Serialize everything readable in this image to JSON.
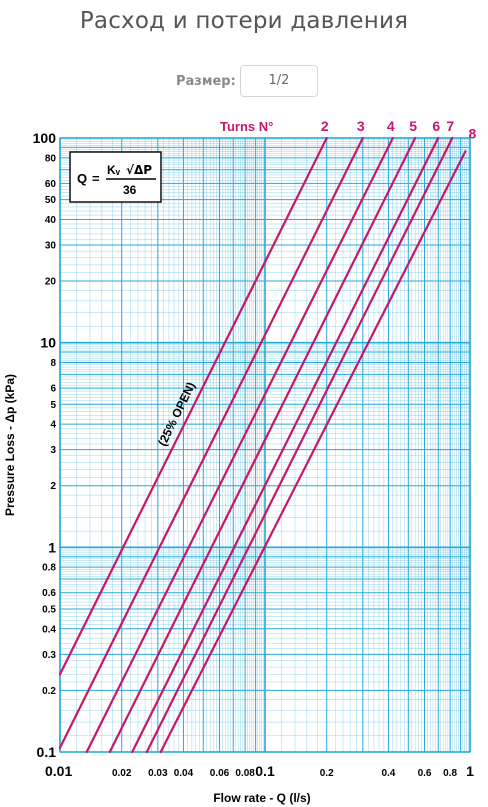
{
  "page": {
    "title": "Расход и потери давления",
    "size_label": "Размер:",
    "size_value": "1/2"
  },
  "colors": {
    "grid": "#27a9d8",
    "series": "#c5176d",
    "axis_text": "#000000"
  },
  "chart_data": {
    "type": "line",
    "xscale": "log",
    "yscale": "log",
    "xlim": [
      0.01,
      1
    ],
    "ylim": [
      0.1,
      100
    ],
    "xlabel": "Flow rate - Q (l/s)",
    "ylabel": "Pressure Loss  - Δp (kPa)",
    "x_ticks": [
      "0.01",
      "0.02",
      "0.03",
      "0.04",
      "0.06",
      "0.08",
      "0.1",
      "0.2",
      "0.4",
      "0.6",
      "0.8",
      "1"
    ],
    "x_tick_values": [
      0.01,
      0.02,
      0.03,
      0.04,
      0.06,
      0.08,
      0.1,
      0.2,
      0.4,
      0.6,
      0.8,
      1
    ],
    "y_ticks": [
      "0.1",
      "0.2",
      "0.3",
      "0.4",
      "0.5",
      "0.6",
      "0.8",
      "1",
      "2",
      "3",
      "4",
      "5",
      "6",
      "8",
      "10",
      "20",
      "30",
      "40",
      "50",
      "60",
      "80",
      "100"
    ],
    "y_tick_values": [
      0.1,
      0.2,
      0.3,
      0.4,
      0.5,
      0.6,
      0.8,
      1,
      2,
      3,
      4,
      5,
      6,
      8,
      10,
      20,
      30,
      40,
      50,
      60,
      80,
      100
    ],
    "legend_title": "Turns N°",
    "formula": {
      "q": "Q",
      "kv": "Kᵥ",
      "dp": "√ΔP",
      "den": "36"
    },
    "annotation": "(25% OPEN)",
    "series": [
      {
        "name": "2",
        "x": [
          0.01,
          0.2
        ],
        "y": [
          0.24,
          100
        ]
      },
      {
        "name": "3",
        "x": [
          0.01,
          0.3
        ],
        "y": [
          0.105,
          100
        ]
      },
      {
        "name": "4",
        "x": [
          0.0135,
          0.42
        ],
        "y": [
          0.1,
          100
        ]
      },
      {
        "name": "5",
        "x": [
          0.0175,
          0.54
        ],
        "y": [
          0.1,
          100
        ]
      },
      {
        "name": "6",
        "x": [
          0.0225,
          0.7
        ],
        "y": [
          0.1,
          100
        ]
      },
      {
        "name": "7",
        "x": [
          0.0265,
          0.82
        ],
        "y": [
          0.1,
          100
        ]
      },
      {
        "name": "8",
        "x": [
          0.031,
          0.95
        ],
        "y": [
          0.1,
          86
        ]
      }
    ]
  }
}
